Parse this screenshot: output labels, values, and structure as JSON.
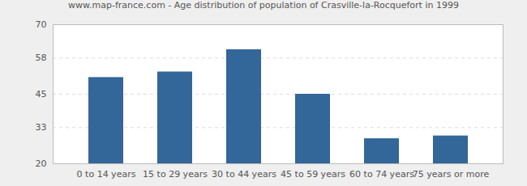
{
  "chart_data": {
    "type": "bar",
    "title": "www.map-france.com - Age distribution of population of Crasville-la-Rocquefort in 1999",
    "categories": [
      "0 to 14 years",
      "15 to 29 years",
      "30 to 44 years",
      "45 to 59 years",
      "60 to 74 years",
      "75 years or more"
    ],
    "values": [
      51,
      53,
      61,
      45,
      29,
      30
    ],
    "color": "#336699",
    "ylim": [
      20,
      70
    ],
    "yticks": [
      20,
      33,
      45,
      58,
      70
    ],
    "grid": true
  }
}
